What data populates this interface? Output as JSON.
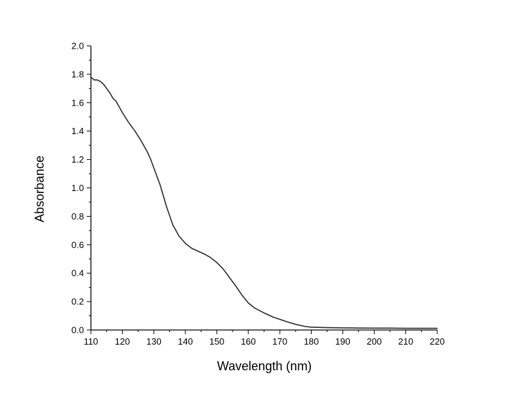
{
  "chart_data": {
    "type": "line",
    "title": "",
    "xlabel": "Wavelength (nm)",
    "ylabel": "Absorbance",
    "xlim": [
      110,
      220
    ],
    "ylim": [
      0.0,
      2.0
    ],
    "x_ticks": [
      110,
      120,
      130,
      140,
      150,
      160,
      170,
      180,
      190,
      200,
      210,
      220
    ],
    "y_ticks": [
      "0.0",
      "0.2",
      "0.4",
      "0.6",
      "0.8",
      "1.0",
      "1.2",
      "1.4",
      "1.6",
      "1.8",
      "2.0"
    ],
    "grid": false,
    "legend": "none",
    "line_color": "#2b2b2b",
    "series": [
      {
        "x": [
          110,
          111,
          112,
          113,
          114,
          115,
          116,
          117,
          118,
          120,
          122,
          124,
          126,
          128,
          129,
          130,
          132,
          134,
          136,
          138,
          140,
          142,
          144,
          146,
          148,
          150,
          152,
          154,
          156,
          158,
          160,
          162,
          165,
          168,
          170,
          172,
          175,
          178,
          180,
          185,
          190,
          195,
          200,
          205,
          210,
          215,
          220
        ],
        "y": [
          1.78,
          1.76,
          1.76,
          1.75,
          1.73,
          1.7,
          1.67,
          1.63,
          1.61,
          1.53,
          1.46,
          1.4,
          1.33,
          1.25,
          1.2,
          1.14,
          1.02,
          0.87,
          0.74,
          0.66,
          0.61,
          0.575,
          0.555,
          0.535,
          0.51,
          0.475,
          0.43,
          0.37,
          0.31,
          0.245,
          0.19,
          0.155,
          0.12,
          0.09,
          0.075,
          0.06,
          0.04,
          0.025,
          0.02,
          0.017,
          0.015,
          0.014,
          0.013,
          0.013,
          0.012,
          0.012,
          0.012
        ]
      }
    ]
  }
}
